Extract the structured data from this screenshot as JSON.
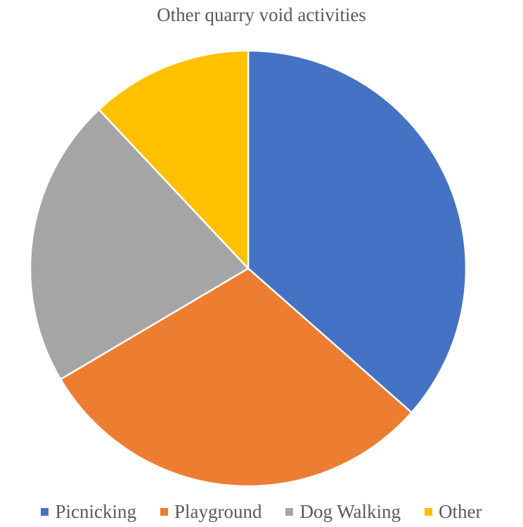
{
  "chart_data": {
    "type": "pie",
    "title": "Other quarry void activities",
    "categories": [
      "Picnicking",
      "Playground",
      "Dog Walking",
      "Other"
    ],
    "values": [
      36.5,
      30.0,
      21.5,
      12.0
    ],
    "colors": [
      "#4472C4",
      "#ED7D31",
      "#A5A5A5",
      "#FFC000"
    ],
    "start_angle_deg": 0,
    "direction": "clockwise",
    "legend_position": "bottom"
  }
}
